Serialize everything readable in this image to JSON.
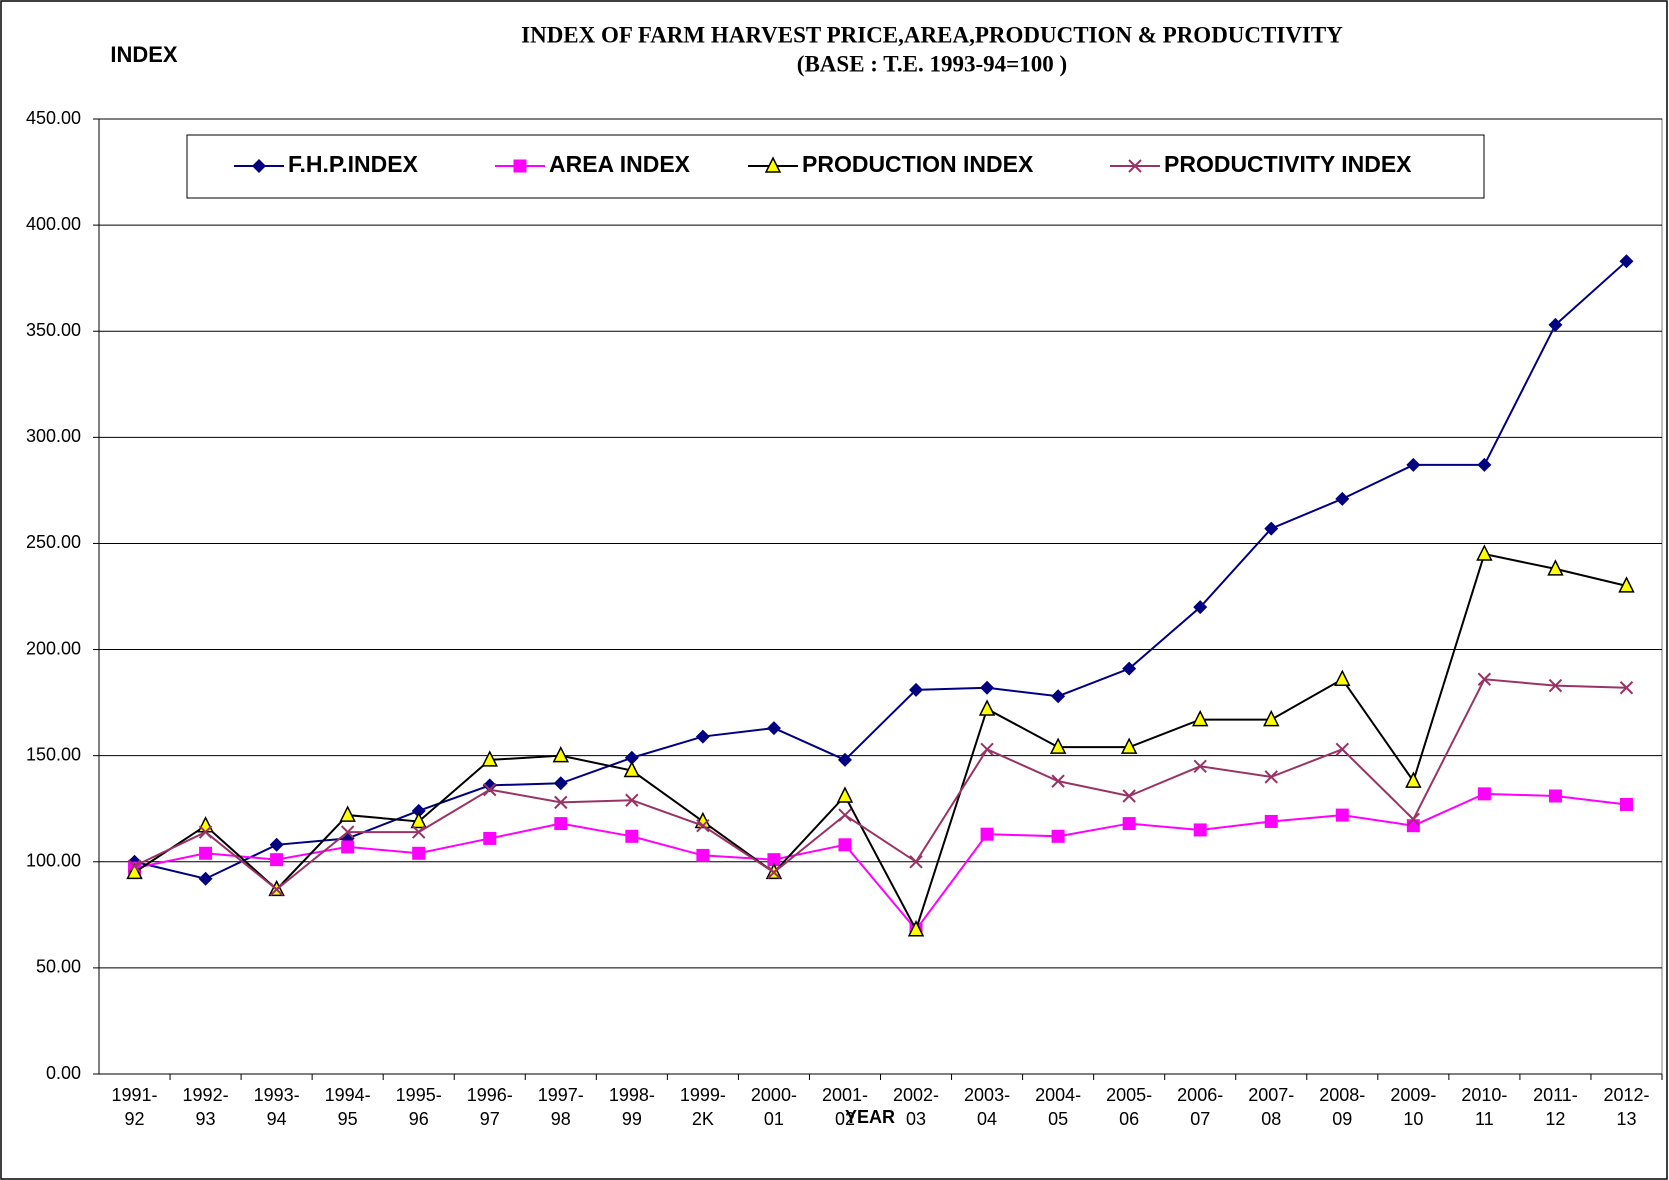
{
  "chart_data": {
    "type": "line",
    "title": "INDEX OF FARM HARVEST PRICE,AREA,PRODUCTION & PRODUCTIVITY",
    "subtitle": "(BASE : T.E. 1993-94=100 )",
    "y_label": "INDEX",
    "x_label": "YEAR",
    "categories": [
      "1991-92",
      "1992-93",
      "1993-94",
      "1994-95",
      "1995-96",
      "1996-97",
      "1997-98",
      "1998-99",
      "1999-2K",
      "2000-01",
      "2001-02",
      "2002-03",
      "2003-04",
      "2004-05",
      "2005-06",
      "2006-07",
      "2007-08",
      "2008-09",
      "2009-10",
      "2010-11",
      "2011-12",
      "2012-13"
    ],
    "series": [
      {
        "name": "F.H.P.INDEX",
        "color": "#000080",
        "marker": "diamond",
        "marker_color": "#000080",
        "values": [
          100,
          92,
          108,
          111,
          124,
          136,
          137,
          149,
          159,
          163,
          148,
          181,
          182,
          178,
          191,
          220,
          257,
          271,
          287,
          287,
          353,
          383
        ]
      },
      {
        "name": "AREA INDEX",
        "color": "#ff00ff",
        "marker": "square",
        "marker_color": "#ff00ff",
        "values": [
          97,
          104,
          101,
          107,
          104,
          111,
          118,
          112,
          103,
          101,
          108,
          68,
          113,
          112,
          118,
          115,
          119,
          122,
          117,
          132,
          131,
          127
        ]
      },
      {
        "name": "PRODUCTION INDEX",
        "color": "#000000",
        "marker": "triangle",
        "marker_color": "#ffff00",
        "values": [
          95,
          117,
          87,
          122,
          119,
          148,
          150,
          143,
          119,
          95,
          131,
          68,
          172,
          154,
          154,
          167,
          167,
          186,
          138,
          245,
          238,
          230
        ]
      },
      {
        "name": "PRODUCTIVITY INDEX",
        "color": "#993366",
        "marker": "x",
        "marker_color": "#993366",
        "values": [
          98,
          114,
          87,
          114,
          114,
          134,
          128,
          129,
          117,
          95,
          122,
          100,
          153,
          138,
          131,
          145,
          140,
          153,
          120,
          186,
          183,
          182
        ]
      }
    ],
    "ylim": [
      0,
      450
    ],
    "yticks": [
      {
        "value": 0,
        "label": "0.00"
      },
      {
        "value": 50,
        "label": "50.00"
      },
      {
        "value": 100,
        "label": "100.00"
      },
      {
        "value": 150,
        "label": "150.00"
      },
      {
        "value": 200,
        "label": "200.00"
      },
      {
        "value": 250,
        "label": "250.00"
      },
      {
        "value": 300,
        "label": "300.00"
      },
      {
        "value": 350,
        "label": "350.00"
      },
      {
        "value": 400,
        "label": "400.00"
      },
      {
        "value": 450,
        "label": "450.00"
      }
    ],
    "grid": true,
    "legend": "top"
  }
}
